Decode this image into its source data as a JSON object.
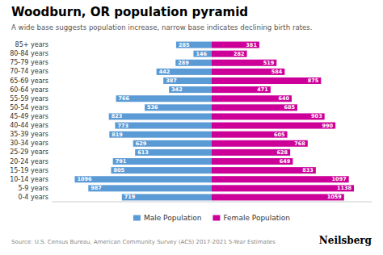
{
  "chart_data": {
    "type": "bar",
    "orientation": "horizontal",
    "title": "Woodburn, OR population pyramid",
    "subtitle": "A wide base suggests population increase, narrow base indicates declining birth rates.",
    "annotations": [
      "Source: U.S. Census Bureau, American Community Survey (ACS) 2017-2021 5-Year Estimates",
      "Neilsberg"
    ],
    "categories": [
      "85+ years",
      "80-84 years",
      "75-79 years",
      "70-74 years",
      "65-69 years",
      "60-64 years",
      "55-59 years",
      "50-54 years",
      "45-49 years",
      "40-44 years",
      "35-39 years",
      "30-34 years",
      "25-29 years",
      "20-24 years",
      "15-19 years",
      "10-14 years",
      "5-9 years",
      "0-4 years"
    ],
    "series": [
      {
        "name": "Male Population",
        "color": "#5B9BD5",
        "values": [
          285,
          146,
          289,
          442,
          387,
          342,
          766,
          536,
          823,
          773,
          819,
          629,
          613,
          791,
          805,
          1096,
          987,
          719
        ]
      },
      {
        "name": "Female Population",
        "color": "#CC0099",
        "values": [
          381,
          282,
          519,
          584,
          875,
          471,
          640,
          685,
          903,
          990,
          605,
          768,
          628,
          649,
          833,
          1097,
          1138,
          1059
        ]
      }
    ],
    "xlim": [
      -1280,
      1280
    ],
    "xticks": [],
    "grid": false,
    "legend": "bottom",
    "data_labels": true,
    "tick_labels": "y"
  }
}
